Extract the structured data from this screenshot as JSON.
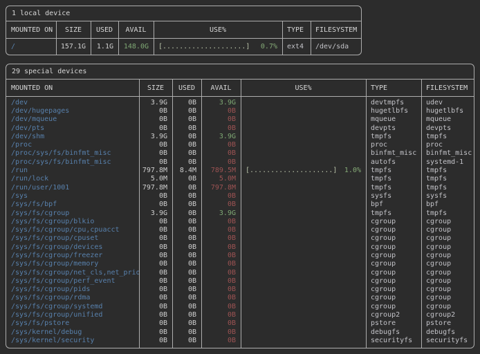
{
  "colors": {
    "bg": "#2c2c2c",
    "border": "#aeaeae",
    "heading": "#d8d8d8",
    "path_blue": "#5881ad",
    "value_gray": "#cfcfcf",
    "avail_green": "#7fa874",
    "avail_red": "#9d5353",
    "bar_gray": "#b7c1a8",
    "pct_green": "#86ab77",
    "type_gray": "#c3c3c8"
  },
  "tables": [
    {
      "title": "1 local device",
      "columns": [
        "MOUNTED ON",
        "SIZE",
        "USED",
        "AVAIL",
        "USE%",
        "TYPE",
        "FILESYSTEM"
      ],
      "rows": [
        {
          "mounted_on": "/",
          "size": "157.1G",
          "used": "1.1G",
          "avail": "148.0G",
          "avail_state": "ok",
          "use_bar": "[....................]",
          "use_pct": "0.7%",
          "type": "ext4",
          "filesystem": "/dev/sda"
        }
      ]
    },
    {
      "title": "29 special devices",
      "columns": [
        "MOUNTED ON",
        "SIZE",
        "USED",
        "AVAIL",
        "USE%",
        "TYPE",
        "FILESYSTEM"
      ],
      "rows": [
        {
          "mounted_on": "/dev",
          "size": "3.9G",
          "used": "0B",
          "avail": "3.9G",
          "avail_state": "ok",
          "use_bar": "",
          "use_pct": "",
          "type": "devtmpfs",
          "filesystem": "udev"
        },
        {
          "mounted_on": "/dev/hugepages",
          "size": "0B",
          "used": "0B",
          "avail": "0B",
          "avail_state": "low",
          "use_bar": "",
          "use_pct": "",
          "type": "hugetlbfs",
          "filesystem": "hugetlbfs"
        },
        {
          "mounted_on": "/dev/mqueue",
          "size": "0B",
          "used": "0B",
          "avail": "0B",
          "avail_state": "low",
          "use_bar": "",
          "use_pct": "",
          "type": "mqueue",
          "filesystem": "mqueue"
        },
        {
          "mounted_on": "/dev/pts",
          "size": "0B",
          "used": "0B",
          "avail": "0B",
          "avail_state": "low",
          "use_bar": "",
          "use_pct": "",
          "type": "devpts",
          "filesystem": "devpts"
        },
        {
          "mounted_on": "/dev/shm",
          "size": "3.9G",
          "used": "0B",
          "avail": "3.9G",
          "avail_state": "ok",
          "use_bar": "",
          "use_pct": "",
          "type": "tmpfs",
          "filesystem": "tmpfs"
        },
        {
          "mounted_on": "/proc",
          "size": "0B",
          "used": "0B",
          "avail": "0B",
          "avail_state": "low",
          "use_bar": "",
          "use_pct": "",
          "type": "proc",
          "filesystem": "proc"
        },
        {
          "mounted_on": "/proc/sys/fs/binfmt_misc",
          "size": "0B",
          "used": "0B",
          "avail": "0B",
          "avail_state": "low",
          "use_bar": "",
          "use_pct": "",
          "type": "binfmt_misc",
          "filesystem": "binfmt_misc"
        },
        {
          "mounted_on": "/proc/sys/fs/binfmt_misc",
          "size": "0B",
          "used": "0B",
          "avail": "0B",
          "avail_state": "low",
          "use_bar": "",
          "use_pct": "",
          "type": "autofs",
          "filesystem": "systemd-1"
        },
        {
          "mounted_on": "/run",
          "size": "797.8M",
          "used": "8.4M",
          "avail": "789.5M",
          "avail_state": "low",
          "use_bar": "[....................]",
          "use_pct": "1.0%",
          "type": "tmpfs",
          "filesystem": "tmpfs"
        },
        {
          "mounted_on": "/run/lock",
          "size": "5.0M",
          "used": "0B",
          "avail": "5.0M",
          "avail_state": "low",
          "use_bar": "",
          "use_pct": "",
          "type": "tmpfs",
          "filesystem": "tmpfs"
        },
        {
          "mounted_on": "/run/user/1001",
          "size": "797.8M",
          "used": "0B",
          "avail": "797.8M",
          "avail_state": "low",
          "use_bar": "",
          "use_pct": "",
          "type": "tmpfs",
          "filesystem": "tmpfs"
        },
        {
          "mounted_on": "/sys",
          "size": "0B",
          "used": "0B",
          "avail": "0B",
          "avail_state": "low",
          "use_bar": "",
          "use_pct": "",
          "type": "sysfs",
          "filesystem": "sysfs"
        },
        {
          "mounted_on": "/sys/fs/bpf",
          "size": "0B",
          "used": "0B",
          "avail": "0B",
          "avail_state": "low",
          "use_bar": "",
          "use_pct": "",
          "type": "bpf",
          "filesystem": "bpf"
        },
        {
          "mounted_on": "/sys/fs/cgroup",
          "size": "3.9G",
          "used": "0B",
          "avail": "3.9G",
          "avail_state": "ok",
          "use_bar": "",
          "use_pct": "",
          "type": "tmpfs",
          "filesystem": "tmpfs"
        },
        {
          "mounted_on": "/sys/fs/cgroup/blkio",
          "size": "0B",
          "used": "0B",
          "avail": "0B",
          "avail_state": "low",
          "use_bar": "",
          "use_pct": "",
          "type": "cgroup",
          "filesystem": "cgroup"
        },
        {
          "mounted_on": "/sys/fs/cgroup/cpu,cpuacct",
          "size": "0B",
          "used": "0B",
          "avail": "0B",
          "avail_state": "low",
          "use_bar": "",
          "use_pct": "",
          "type": "cgroup",
          "filesystem": "cgroup"
        },
        {
          "mounted_on": "/sys/fs/cgroup/cpuset",
          "size": "0B",
          "used": "0B",
          "avail": "0B",
          "avail_state": "low",
          "use_bar": "",
          "use_pct": "",
          "type": "cgroup",
          "filesystem": "cgroup"
        },
        {
          "mounted_on": "/sys/fs/cgroup/devices",
          "size": "0B",
          "used": "0B",
          "avail": "0B",
          "avail_state": "low",
          "use_bar": "",
          "use_pct": "",
          "type": "cgroup",
          "filesystem": "cgroup"
        },
        {
          "mounted_on": "/sys/fs/cgroup/freezer",
          "size": "0B",
          "used": "0B",
          "avail": "0B",
          "avail_state": "low",
          "use_bar": "",
          "use_pct": "",
          "type": "cgroup",
          "filesystem": "cgroup"
        },
        {
          "mounted_on": "/sys/fs/cgroup/memory",
          "size": "0B",
          "used": "0B",
          "avail": "0B",
          "avail_state": "low",
          "use_bar": "",
          "use_pct": "",
          "type": "cgroup",
          "filesystem": "cgroup"
        },
        {
          "mounted_on": "/sys/fs/cgroup/net_cls,net_prio",
          "size": "0B",
          "used": "0B",
          "avail": "0B",
          "avail_state": "low",
          "use_bar": "",
          "use_pct": "",
          "type": "cgroup",
          "filesystem": "cgroup"
        },
        {
          "mounted_on": "/sys/fs/cgroup/perf_event",
          "size": "0B",
          "used": "0B",
          "avail": "0B",
          "avail_state": "low",
          "use_bar": "",
          "use_pct": "",
          "type": "cgroup",
          "filesystem": "cgroup"
        },
        {
          "mounted_on": "/sys/fs/cgroup/pids",
          "size": "0B",
          "used": "0B",
          "avail": "0B",
          "avail_state": "low",
          "use_bar": "",
          "use_pct": "",
          "type": "cgroup",
          "filesystem": "cgroup"
        },
        {
          "mounted_on": "/sys/fs/cgroup/rdma",
          "size": "0B",
          "used": "0B",
          "avail": "0B",
          "avail_state": "low",
          "use_bar": "",
          "use_pct": "",
          "type": "cgroup",
          "filesystem": "cgroup"
        },
        {
          "mounted_on": "/sys/fs/cgroup/systemd",
          "size": "0B",
          "used": "0B",
          "avail": "0B",
          "avail_state": "low",
          "use_bar": "",
          "use_pct": "",
          "type": "cgroup",
          "filesystem": "cgroup"
        },
        {
          "mounted_on": "/sys/fs/cgroup/unified",
          "size": "0B",
          "used": "0B",
          "avail": "0B",
          "avail_state": "low",
          "use_bar": "",
          "use_pct": "",
          "type": "cgroup2",
          "filesystem": "cgroup2"
        },
        {
          "mounted_on": "/sys/fs/pstore",
          "size": "0B",
          "used": "0B",
          "avail": "0B",
          "avail_state": "low",
          "use_bar": "",
          "use_pct": "",
          "type": "pstore",
          "filesystem": "pstore"
        },
        {
          "mounted_on": "/sys/kernel/debug",
          "size": "0B",
          "used": "0B",
          "avail": "0B",
          "avail_state": "low",
          "use_bar": "",
          "use_pct": "",
          "type": "debugfs",
          "filesystem": "debugfs"
        },
        {
          "mounted_on": "/sys/kernel/security",
          "size": "0B",
          "used": "0B",
          "avail": "0B",
          "avail_state": "low",
          "use_bar": "",
          "use_pct": "",
          "type": "securityfs",
          "filesystem": "securityfs"
        }
      ]
    }
  ]
}
